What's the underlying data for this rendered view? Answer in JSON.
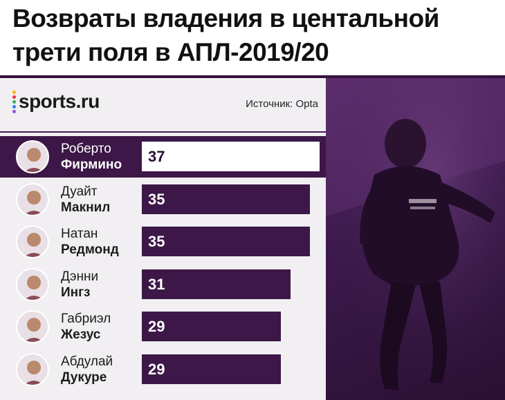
{
  "title_lines": [
    "Возвраты владения в центальной",
    "трети поля в АПЛ-2019/20"
  ],
  "brand": {
    "name": "sports.ru",
    "dot_colors": [
      "#ffb400",
      "#e8334a",
      "#3fae49",
      "#2f80ed",
      "#9b51e0"
    ]
  },
  "source": "Источник: Opta",
  "colors": {
    "bar": "#3c1747",
    "highlight_row": "#3c1747",
    "highlight_bar": "#ffffff",
    "panel_background": "#f1eff2"
  },
  "chart_data": {
    "type": "bar",
    "orientation": "horizontal",
    "title": "Возвраты владения в центальной трети поля в АПЛ-2019/20",
    "xlim": [
      0,
      37
    ],
    "categories": [
      {
        "first": "Роберто",
        "last": "Фирмино",
        "value": 37,
        "highlight": true
      },
      {
        "first": "Дуайт",
        "last": "Макнил",
        "value": 35,
        "highlight": false
      },
      {
        "first": "Натан",
        "last": "Редмонд",
        "value": 35,
        "highlight": false
      },
      {
        "first": "Дэнни",
        "last": "Ингз",
        "value": 31,
        "highlight": false
      },
      {
        "first": "Габриэл",
        "last": "Жезус",
        "value": 29,
        "highlight": false
      },
      {
        "first": "Абдулай",
        "last": "Дукуре",
        "value": 29,
        "highlight": false
      }
    ]
  }
}
